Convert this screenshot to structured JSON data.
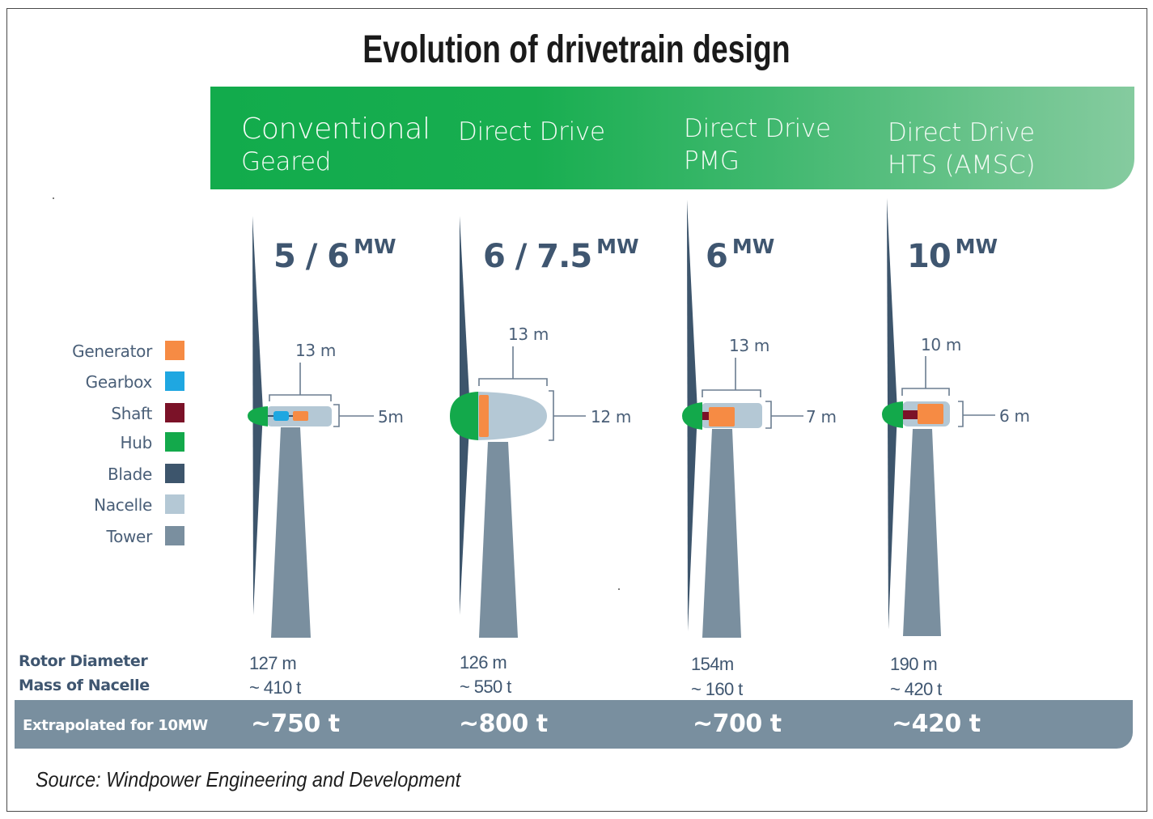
{
  "title": "Evolution of drivetrain design",
  "categories": [
    {
      "line1": "Conventional",
      "line2": "Geared"
    },
    {
      "line1": "Direct Drive",
      "line2": ""
    },
    {
      "line1": "Direct Drive",
      "line2": "PMG"
    },
    {
      "line1": "Direct Drive",
      "line2": "HTS (AMSC)"
    }
  ],
  "legend": [
    {
      "label": "Generator",
      "color": "#f68b44"
    },
    {
      "label": "Gearbox",
      "color": "#1fa7e1"
    },
    {
      "label": "Shaft",
      "color": "#7b1228"
    },
    {
      "label": "Hub",
      "color": "#13a94b"
    },
    {
      "label": "Blade",
      "color": "#3d556c"
    },
    {
      "label": "Nacelle",
      "color": "#b4c8d5"
    },
    {
      "label": "Tower",
      "color": "#7a8f9f"
    }
  ],
  "turbines": [
    {
      "rating": "5 / 6",
      "unit": "MW",
      "length": "13 m",
      "height": "5m",
      "rotor_diameter": "127 m",
      "mass": "~ 410 t",
      "extrapolated": "~750 t"
    },
    {
      "rating": "6 / 7.5",
      "unit": "MW",
      "length": "13 m",
      "height": "12 m",
      "rotor_diameter": "126 m",
      "mass": "~ 550 t",
      "extrapolated": "~800 t"
    },
    {
      "rating": "6",
      "unit": "MW",
      "length": "13 m",
      "height": "7 m",
      "rotor_diameter": "154m",
      "mass": "~ 160 t",
      "extrapolated": "~700 t"
    },
    {
      "rating": "10",
      "unit": "MW",
      "length": "10 m",
      "height": "6 m",
      "rotor_diameter": "190 m",
      "mass": "~ 420 t",
      "extrapolated": "~420 t"
    }
  ],
  "row_labels": {
    "rotor_diameter": "Rotor Diameter",
    "mass": "Mass of Nacelle",
    "extrapolated": "Extrapolated for 10MW"
  },
  "source": "Source: Windpower Engineering and Development",
  "colors": {
    "banner_start": "#12ab4c",
    "banner_end": "#85cb9f",
    "bar": "#798f9f",
    "text_dark": "#3f5670",
    "bracket": "#6b7d90"
  }
}
